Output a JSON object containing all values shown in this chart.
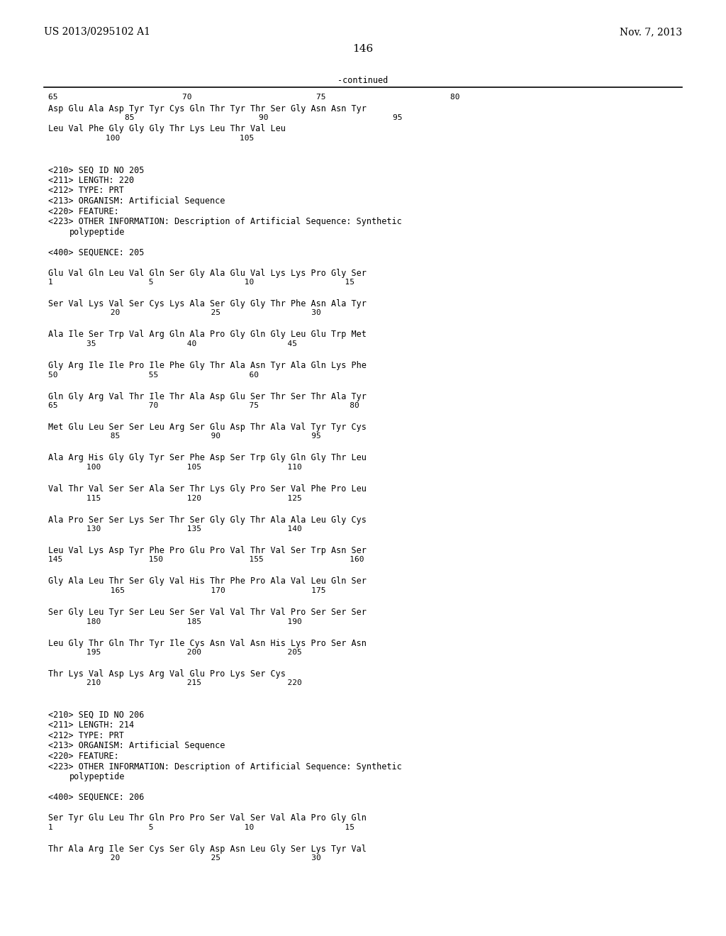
{
  "background_color": "#ffffff",
  "header_left": "US 2013/0295102 A1",
  "header_right": "Nov. 7, 2013",
  "page_number": "146",
  "continued_label": "-continued",
  "font_size_main": 8.5,
  "font_size_header": 10,
  "lines": [
    {
      "y": 0,
      "type": "ruler_numbers",
      "text": "65                          70                          75                          80"
    },
    {
      "y": 1,
      "type": "sequence",
      "text": "Asp Glu Ala Asp Tyr Tyr Cys Gln Thr Tyr Thr Ser Gly Asn Asn Tyr"
    },
    {
      "y": 2,
      "type": "ruler_numbers_indent",
      "text": "                85                          90                          95"
    },
    {
      "y": 3,
      "type": "sequence",
      "text": "Leu Val Phe Gly Gly Gly Thr Lys Leu Thr Val Leu"
    },
    {
      "y": 4,
      "type": "ruler_numbers_indent",
      "text": "            100                         105"
    },
    {
      "y": 5,
      "type": "blank"
    },
    {
      "y": 6,
      "type": "blank"
    },
    {
      "y": 7,
      "type": "meta",
      "text": "<210> SEQ ID NO 205"
    },
    {
      "y": 8,
      "type": "meta",
      "text": "<211> LENGTH: 220"
    },
    {
      "y": 9,
      "type": "meta",
      "text": "<212> TYPE: PRT"
    },
    {
      "y": 10,
      "type": "meta",
      "text": "<213> ORGANISM: Artificial Sequence"
    },
    {
      "y": 11,
      "type": "meta",
      "text": "<220> FEATURE:"
    },
    {
      "y": 12,
      "type": "meta",
      "text": "<223> OTHER INFORMATION: Description of Artificial Sequence: Synthetic"
    },
    {
      "y": 13,
      "type": "meta_indent",
      "text": "      polypeptide"
    },
    {
      "y": 14,
      "type": "blank"
    },
    {
      "y": 15,
      "type": "meta",
      "text": "<400> SEQUENCE: 205"
    },
    {
      "y": 16,
      "type": "blank"
    },
    {
      "y": 17,
      "type": "sequence",
      "text": "Glu Val Gln Leu Val Gln Ser Gly Ala Glu Val Lys Lys Pro Gly Ser"
    },
    {
      "y": 18,
      "type": "ruler_numbers",
      "text": "1                    5                   10                   15"
    },
    {
      "y": 19,
      "type": "blank"
    },
    {
      "y": 20,
      "type": "sequence",
      "text": "Ser Val Lys Val Ser Cys Lys Ala Ser Gly Gly Thr Phe Asn Ala Tyr"
    },
    {
      "y": 21,
      "type": "ruler_numbers_indent",
      "text": "             20                   25                   30"
    },
    {
      "y": 22,
      "type": "blank"
    },
    {
      "y": 23,
      "type": "sequence",
      "text": "Ala Ile Ser Trp Val Arg Gln Ala Pro Gly Gln Gly Leu Glu Trp Met"
    },
    {
      "y": 24,
      "type": "ruler_numbers_indent",
      "text": "        35                   40                   45"
    },
    {
      "y": 25,
      "type": "blank"
    },
    {
      "y": 26,
      "type": "sequence",
      "text": "Gly Arg Ile Ile Pro Ile Phe Gly Thr Ala Asn Tyr Ala Gln Lys Phe"
    },
    {
      "y": 27,
      "type": "ruler_numbers",
      "text": "50                   55                   60"
    },
    {
      "y": 28,
      "type": "blank"
    },
    {
      "y": 29,
      "type": "sequence",
      "text": "Gln Gly Arg Val Thr Ile Thr Ala Asp Glu Ser Thr Ser Thr Ala Tyr"
    },
    {
      "y": 30,
      "type": "ruler_numbers",
      "text": "65                   70                   75                   80"
    },
    {
      "y": 31,
      "type": "blank"
    },
    {
      "y": 32,
      "type": "sequence",
      "text": "Met Glu Leu Ser Ser Leu Arg Ser Glu Asp Thr Ala Val Tyr Tyr Cys"
    },
    {
      "y": 33,
      "type": "ruler_numbers_indent",
      "text": "             85                   90                   95"
    },
    {
      "y": 34,
      "type": "blank"
    },
    {
      "y": 35,
      "type": "sequence",
      "text": "Ala Arg His Gly Gly Tyr Ser Phe Asp Ser Trp Gly Gln Gly Thr Leu"
    },
    {
      "y": 36,
      "type": "ruler_numbers_indent",
      "text": "        100                  105                  110"
    },
    {
      "y": 37,
      "type": "blank"
    },
    {
      "y": 38,
      "type": "sequence",
      "text": "Val Thr Val Ser Ser Ala Ser Thr Lys Gly Pro Ser Val Phe Pro Leu"
    },
    {
      "y": 39,
      "type": "ruler_numbers_indent",
      "text": "        115                  120                  125"
    },
    {
      "y": 40,
      "type": "blank"
    },
    {
      "y": 41,
      "type": "sequence",
      "text": "Ala Pro Ser Ser Lys Ser Thr Ser Gly Gly Thr Ala Ala Leu Gly Cys"
    },
    {
      "y": 42,
      "type": "ruler_numbers_indent",
      "text": "        130                  135                  140"
    },
    {
      "y": 43,
      "type": "blank"
    },
    {
      "y": 44,
      "type": "sequence",
      "text": "Leu Val Lys Asp Tyr Phe Pro Glu Pro Val Thr Val Ser Trp Asn Ser"
    },
    {
      "y": 45,
      "type": "ruler_numbers",
      "text": "145                  150                  155                  160"
    },
    {
      "y": 46,
      "type": "blank"
    },
    {
      "y": 47,
      "type": "sequence",
      "text": "Gly Ala Leu Thr Ser Gly Val His Thr Phe Pro Ala Val Leu Gln Ser"
    },
    {
      "y": 48,
      "type": "ruler_numbers_indent",
      "text": "             165                  170                  175"
    },
    {
      "y": 49,
      "type": "blank"
    },
    {
      "y": 50,
      "type": "sequence",
      "text": "Ser Gly Leu Tyr Ser Leu Ser Ser Val Val Thr Val Pro Ser Ser Ser"
    },
    {
      "y": 51,
      "type": "ruler_numbers_indent",
      "text": "        180                  185                  190"
    },
    {
      "y": 52,
      "type": "blank"
    },
    {
      "y": 53,
      "type": "sequence",
      "text": "Leu Gly Thr Gln Thr Tyr Ile Cys Asn Val Asn His Lys Pro Ser Asn"
    },
    {
      "y": 54,
      "type": "ruler_numbers_indent",
      "text": "        195                  200                  205"
    },
    {
      "y": 55,
      "type": "blank"
    },
    {
      "y": 56,
      "type": "sequence",
      "text": "Thr Lys Val Asp Lys Arg Val Glu Pro Lys Ser Cys"
    },
    {
      "y": 57,
      "type": "ruler_numbers_indent",
      "text": "        210                  215                  220"
    },
    {
      "y": 58,
      "type": "blank"
    },
    {
      "y": 59,
      "type": "blank"
    },
    {
      "y": 60,
      "type": "meta",
      "text": "<210> SEQ ID NO 206"
    },
    {
      "y": 61,
      "type": "meta",
      "text": "<211> LENGTH: 214"
    },
    {
      "y": 62,
      "type": "meta",
      "text": "<212> TYPE: PRT"
    },
    {
      "y": 63,
      "type": "meta",
      "text": "<213> ORGANISM: Artificial Sequence"
    },
    {
      "y": 64,
      "type": "meta",
      "text": "<220> FEATURE:"
    },
    {
      "y": 65,
      "type": "meta",
      "text": "<223> OTHER INFORMATION: Description of Artificial Sequence: Synthetic"
    },
    {
      "y": 66,
      "type": "meta_indent",
      "text": "      polypeptide"
    },
    {
      "y": 67,
      "type": "blank"
    },
    {
      "y": 68,
      "type": "meta",
      "text": "<400> SEQUENCE: 206"
    },
    {
      "y": 69,
      "type": "blank"
    },
    {
      "y": 70,
      "type": "sequence",
      "text": "Ser Tyr Glu Leu Thr Gln Pro Pro Ser Val Ser Val Ala Pro Gly Gln"
    },
    {
      "y": 71,
      "type": "ruler_numbers",
      "text": "1                    5                   10                   15"
    },
    {
      "y": 72,
      "type": "blank"
    },
    {
      "y": 73,
      "type": "sequence",
      "text": "Thr Ala Arg Ile Ser Cys Ser Gly Asp Asn Leu Gly Ser Lys Tyr Val"
    },
    {
      "y": 74,
      "type": "ruler_numbers_indent",
      "text": "             20                   25                   30"
    }
  ]
}
